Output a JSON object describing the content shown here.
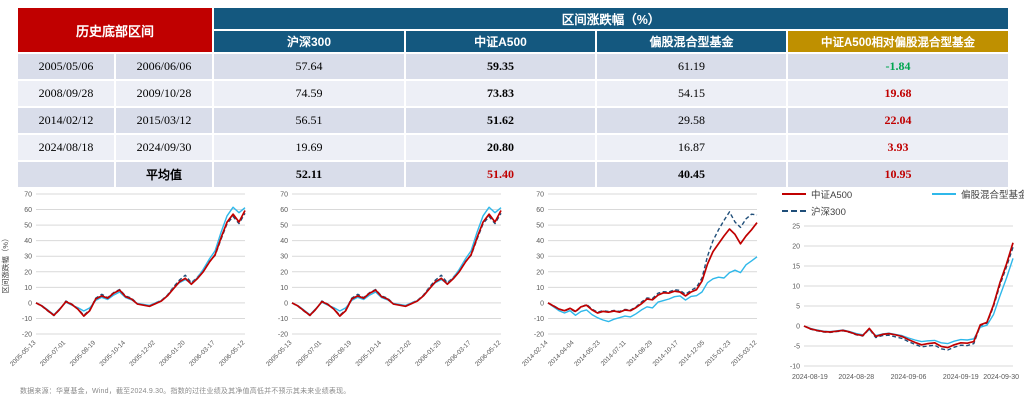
{
  "table": {
    "corner_header": "历史底部区间",
    "group_header": "区间涨跌幅（%）",
    "col_headers": [
      "沪深300",
      "中证A500",
      "偏股混合型基金",
      "中证A500相对偏股混合型基金"
    ],
    "rows": [
      {
        "start": "2005/05/06",
        "end": "2006/06/06",
        "hs300": "57.64",
        "a500": "59.35",
        "fund": "61.19",
        "rel": "-1.84",
        "rel_color": "#00A550"
      },
      {
        "start": "2008/09/28",
        "end": "2009/10/28",
        "hs300": "74.59",
        "a500": "73.83",
        "fund": "54.15",
        "rel": "19.68",
        "rel_color": "#C00000"
      },
      {
        "start": "2014/02/12",
        "end": "2015/03/12",
        "hs300": "56.51",
        "a500": "51.62",
        "fund": "29.58",
        "rel": "22.04",
        "rel_color": "#C00000"
      },
      {
        "start": "2024/08/18",
        "end": "2024/09/30",
        "hs300": "19.69",
        "a500": "20.80",
        "fund": "16.87",
        "rel": "3.93",
        "rel_color": "#C00000"
      }
    ],
    "avg_row": {
      "label": "平均值",
      "hs300": "52.11",
      "a500": "51.40",
      "a500_color": "#C00000",
      "fund": "40.45",
      "rel": "10.95",
      "rel_color": "#C00000"
    }
  },
  "colors": {
    "header_red": "#C00000",
    "header_blue": "#14587F",
    "header_gold": "#BF9000",
    "row_dark": "#D9DDEA",
    "row_light": "#EDEFF6",
    "line_a500": "#C00000",
    "line_hs300": "#1F4E79",
    "line_fund": "#2FB8EA",
    "grid": "#D9D9D9",
    "tick_text": "#595959"
  },
  "chart_data": [
    {
      "type": "line",
      "ylabel": "区间涨跌幅（%）",
      "ylim": [
        -20,
        70
      ],
      "ystep": 10,
      "grid": true,
      "rotate_x_labels": true,
      "x_labels": [
        "2005-05-13",
        "2005-07-01",
        "2005-08-19",
        "2005-10-14",
        "2005-12-02",
        "2006-01-20",
        "2006-03-17",
        "2006-05-12"
      ],
      "series": [
        {
          "name": "沪深300",
          "color": "#1F4E79",
          "dash": true,
          "values": [
            0,
            -2.2,
            -5.3,
            -8.2,
            -4.2,
            1.2,
            -0.8,
            -3.7,
            -8,
            -4.6,
            3,
            5.5,
            3.4,
            6.6,
            8.6,
            4.4,
            3,
            -0.6,
            -1.2,
            -1.9,
            0,
            1.6,
            5,
            10,
            14.6,
            17.8,
            13,
            16.3,
            21,
            26.5,
            30.5,
            41,
            51,
            55.5,
            51,
            57.6
          ]
        },
        {
          "name": "偏股混合型基金指数",
          "color": "#2FB8EA",
          "dash": false,
          "values": [
            0,
            -1.8,
            -4.6,
            -7.6,
            -3.6,
            0.4,
            -1.4,
            -3,
            -5.2,
            -3.2,
            1.6,
            3.6,
            2.2,
            5,
            7,
            3.4,
            2,
            -0.4,
            -1,
            -1.6,
            0,
            1.4,
            4.6,
            9.4,
            13,
            15,
            12.4,
            16,
            21.5,
            28,
            33.5,
            45.5,
            56,
            61.5,
            58,
            61.2
          ]
        },
        {
          "name": "中证A500",
          "color": "#C00000",
          "dash": false,
          "values": [
            0,
            -2,
            -5,
            -8,
            -4,
            0.8,
            -1,
            -4,
            -8.5,
            -5,
            2.5,
            4.5,
            3,
            6.2,
            8.2,
            4,
            2.5,
            -0.8,
            -1.5,
            -2.2,
            -0.5,
            1.2,
            4.5,
            9,
            13.5,
            15.8,
            12,
            15.5,
            20,
            26,
            31,
            42,
            52,
            57,
            52,
            59.4
          ]
        }
      ]
    },
    {
      "type": "line",
      "ylabel": "",
      "ylim": [
        -20,
        70
      ],
      "ystep": 10,
      "grid": true,
      "rotate_x_labels": true,
      "x_labels": [
        "2005-05-13",
        "2005-07-01",
        "2005-08-19",
        "2005-10-14",
        "2005-12-02",
        "2006-01-20",
        "2006-03-17",
        "2006-05-12"
      ],
      "series": [
        {
          "name": "沪深300",
          "color": "#1F4E79",
          "dash": true,
          "values": [
            0,
            -2.2,
            -5.3,
            -8.2,
            -4.2,
            1.2,
            -0.8,
            -3.7,
            -8,
            -4.6,
            3,
            5.5,
            3.4,
            6.6,
            8.6,
            4.4,
            3,
            -0.6,
            -1.2,
            -1.9,
            0,
            1.6,
            5,
            10,
            14.6,
            17.8,
            13,
            16.3,
            21,
            26.5,
            30.5,
            41,
            51,
            55.5,
            51,
            57.6
          ]
        },
        {
          "name": "偏股混合型基金指数",
          "color": "#2FB8EA",
          "dash": false,
          "values": [
            0,
            -1.8,
            -4.6,
            -7.6,
            -3.6,
            0.4,
            -1.4,
            -3,
            -5.2,
            -3.2,
            1.6,
            3.6,
            2.2,
            5,
            7,
            3.4,
            2,
            -0.4,
            -1,
            -1.6,
            0,
            1.4,
            4.6,
            9.4,
            13,
            15,
            12.4,
            16,
            21.5,
            28,
            33.5,
            45.5,
            56,
            61.5,
            58,
            61.2
          ]
        },
        {
          "name": "中证A500",
          "color": "#C00000",
          "dash": false,
          "values": [
            0,
            -2,
            -5,
            -8,
            -4,
            0.8,
            -1,
            -4,
            -8.5,
            -5,
            2.5,
            4.5,
            3,
            6.2,
            8.2,
            4,
            2.5,
            -0.8,
            -1.5,
            -2.2,
            -0.5,
            1.2,
            4.5,
            9,
            13.5,
            15.8,
            12,
            15.5,
            20,
            26,
            31,
            42,
            52,
            57,
            52,
            59.4
          ]
        }
      ]
    },
    {
      "type": "line",
      "ylabel": "",
      "ylim": [
        -20,
        70
      ],
      "ystep": 10,
      "grid": true,
      "rotate_x_labels": true,
      "x_labels": [
        "2014-02-14",
        "2014-04-04",
        "2014-05-23",
        "2014-07-11",
        "2014-08-29",
        "2014-10-17",
        "2014-12-05",
        "2015-01-23",
        "2015-03-12"
      ],
      "series": [
        {
          "name": "沪深300",
          "color": "#1F4E79",
          "dash": true,
          "values": [
            0,
            -1.8,
            -3.8,
            -5.2,
            -3.8,
            -5.8,
            -2.8,
            -1,
            -4,
            -6,
            -5,
            -5.5,
            -4.8,
            -5.5,
            -4.2,
            -4.6,
            -2.6,
            0.5,
            3.2,
            2.8,
            6.2,
            7.2,
            7,
            8.5,
            8,
            5.5,
            8,
            10,
            16,
            30,
            40,
            47,
            53,
            58.5,
            52,
            48.5,
            54,
            57,
            56.5
          ]
        },
        {
          "name": "偏股混合型基金指数",
          "color": "#2FB8EA",
          "dash": false,
          "values": [
            0,
            -2.5,
            -5,
            -6.5,
            -5,
            -8,
            -5.5,
            -4.5,
            -7.5,
            -9.5,
            -11,
            -12,
            -10.5,
            -9.5,
            -8.5,
            -9,
            -7,
            -4.5,
            -2.5,
            -3.2,
            0.5,
            1.5,
            2.5,
            4,
            4.5,
            1.8,
            4.2,
            4.6,
            7,
            13,
            15.5,
            16.5,
            16,
            19.5,
            21,
            19.5,
            24.5,
            27,
            29.6
          ]
        },
        {
          "name": "中证A500",
          "color": "#C00000",
          "dash": false,
          "values": [
            0,
            -2,
            -4,
            -5,
            -3.5,
            -5.5,
            -2.5,
            -1.5,
            -4.5,
            -6.5,
            -5.5,
            -6,
            -5.2,
            -6,
            -4.6,
            -5,
            -3,
            -0.5,
            2.5,
            2,
            5,
            6.5,
            6.3,
            7.5,
            7,
            4.5,
            7,
            8.5,
            14,
            25,
            33,
            38,
            43,
            47.5,
            44,
            38,
            43,
            47,
            51.6
          ]
        }
      ]
    },
    {
      "type": "line",
      "ylabel": "",
      "ylim": [
        -10,
        25
      ],
      "ystep": 5,
      "grid": true,
      "rotate_x_labels": false,
      "x_labels": [
        "2024-08-19",
        "2024-08-28",
        "2024-09-06",
        "2024-09-19",
        "2024-09-30"
      ],
      "series": [
        {
          "name": "沪深300",
          "color": "#1F4E79",
          "dash": true,
          "values": [
            0,
            -0.8,
            -1.2,
            -1.5,
            -1.6,
            -1.4,
            -1.2,
            -1.6,
            -2.2,
            -2.5,
            -0.8,
            -2.9,
            -2.4,
            -2.3,
            -2.7,
            -3.1,
            -3.9,
            -4.6,
            -5.2,
            -5.0,
            -4.8,
            -5.7,
            -6.0,
            -5.3,
            -4.8,
            -4.9,
            -4.4,
            0.1,
            0.7,
            4.8,
            10.2,
            14.8,
            19.7
          ]
        },
        {
          "name": "偏股混合型基金指数",
          "color": "#2FB8EA",
          "dash": false,
          "values": [
            0,
            -0.6,
            -1.0,
            -1.3,
            -1.4,
            -1.2,
            -1.0,
            -1.4,
            -1.9,
            -2.2,
            -0.9,
            -2.4,
            -2.0,
            -1.8,
            -2.1,
            -2.4,
            -3.0,
            -3.5,
            -3.9,
            -3.7,
            -3.6,
            -4.2,
            -4.4,
            -3.8,
            -3.4,
            -3.5,
            -3.2,
            -0.3,
            0.2,
            2.8,
            7.5,
            12.0,
            16.9
          ]
        },
        {
          "name": "中证A500",
          "color": "#C00000",
          "dash": false,
          "values": [
            0,
            -0.7,
            -1.1,
            -1.4,
            -1.5,
            -1.3,
            -1.1,
            -1.5,
            -2.1,
            -2.4,
            -0.6,
            -2.6,
            -2.1,
            -1.9,
            -2.2,
            -2.6,
            -3.4,
            -4.1,
            -4.7,
            -4.4,
            -4.2,
            -5.1,
            -5.4,
            -4.7,
            -4.2,
            -4.3,
            -3.9,
            0.3,
            0.9,
            5.2,
            10.8,
            15.5,
            20.8
          ]
        }
      ]
    }
  ],
  "legend": {
    "items": [
      {
        "label": "中证A500",
        "color": "#C00000",
        "dash": false
      },
      {
        "label": "偏股混合型基金指数",
        "color": "#2FB8EA",
        "dash": false
      },
      {
        "label": "沪深300",
        "color": "#1F4E79",
        "dash": true
      }
    ]
  },
  "footnote": "数据来源：华夏基金，Wind，截至2024.9.30。指数的过往业绩及其净值高低并不预示其未来业绩表现。"
}
